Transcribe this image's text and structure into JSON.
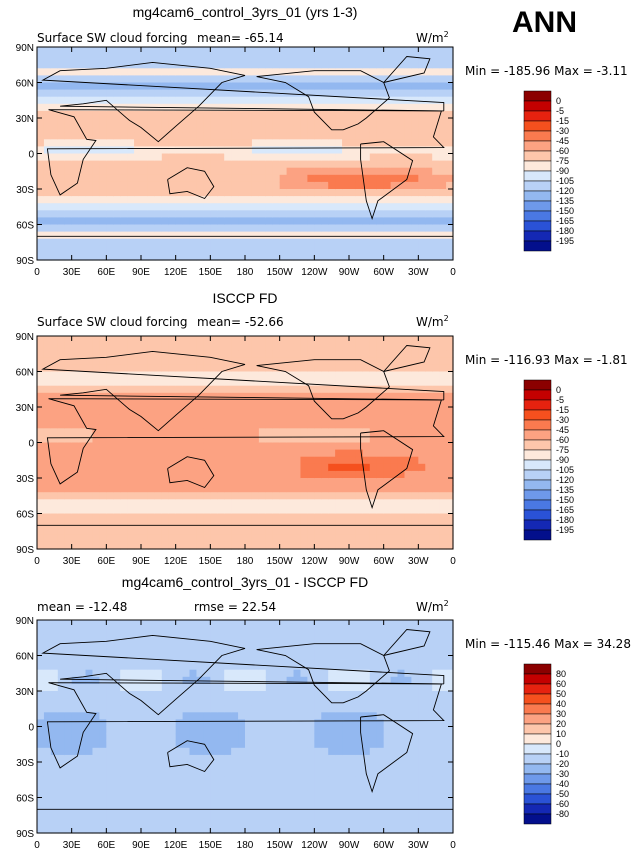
{
  "season": "ANN",
  "units": "W/m",
  "units_sup": "2",
  "chart_data": [
    {
      "type": "heatmap",
      "title": "mg4cam6_control_3yrs_01 (yrs 1-3)",
      "field_label": "Surface SW cloud forcing",
      "mean_label": "mean=",
      "mean": "-65.14",
      "min_label": "Min =",
      "min": "-185.96",
      "max_label": "Max =",
      "max": "-3.11",
      "x_ticks": [
        "0",
        "30E",
        "60E",
        "90E",
        "120E",
        "150E",
        "180",
        "150W",
        "120W",
        "90W",
        "60W",
        "30W",
        "0"
      ],
      "y_ticks": [
        "90N",
        "60N",
        "30N",
        "0",
        "30S",
        "60S",
        "90S"
      ],
      "xlim": [
        0,
        360
      ],
      "ylim": [
        -90,
        90
      ],
      "colorbar_labels": [
        "0",
        "-5",
        "-15",
        "-30",
        "-45",
        "-60",
        "-75",
        "-90",
        "-105",
        "-120",
        "-135",
        "-150",
        "-165",
        "-180",
        "-195"
      ],
      "colorbar_colors": [
        "#8b0000",
        "#c40000",
        "#e6220f",
        "#f5501e",
        "#fa7a4f",
        "#fca282",
        "#fdc6ab",
        "#fde9dc",
        "#d8e8fb",
        "#b8d1f6",
        "#93b8f0",
        "#6e99ea",
        "#4a78e3",
        "#2a52d6",
        "#1428b4",
        "#030f8c"
      ]
    },
    {
      "type": "heatmap",
      "title": "ISCCP FD",
      "field_label": "Surface SW cloud forcing",
      "mean_label": "mean=",
      "mean": "-52.66",
      "min_label": "Min =",
      "min": "-116.93",
      "max_label": "Max =",
      "max": "-1.81",
      "x_ticks": [
        "0",
        "30E",
        "60E",
        "90E",
        "120E",
        "150E",
        "180",
        "150W",
        "120W",
        "90W",
        "60W",
        "30W",
        "0"
      ],
      "y_ticks": [
        "90N",
        "60N",
        "30N",
        "0",
        "30S",
        "60S",
        "90S"
      ],
      "xlim": [
        0,
        360
      ],
      "ylim": [
        -90,
        90
      ],
      "colorbar_labels": [
        "0",
        "-5",
        "-15",
        "-30",
        "-45",
        "-60",
        "-75",
        "-90",
        "-105",
        "-120",
        "-135",
        "-150",
        "-165",
        "-180",
        "-195"
      ],
      "colorbar_colors": [
        "#8b0000",
        "#c40000",
        "#e6220f",
        "#f5501e",
        "#fa7a4f",
        "#fca282",
        "#fdc6ab",
        "#fde9dc",
        "#d8e8fb",
        "#b8d1f6",
        "#93b8f0",
        "#6e99ea",
        "#4a78e3",
        "#2a52d6",
        "#1428b4",
        "#030f8c"
      ]
    },
    {
      "type": "heatmap",
      "title": "mg4cam6_control_3yrs_01 - ISCCP FD",
      "mean_label": "mean =",
      "mean": "-12.48",
      "rmse_label": "rmse =",
      "rmse": "22.54",
      "min_label": "Min =",
      "min": "-115.46",
      "max_label": "Max =",
      "max": "34.28",
      "x_ticks": [
        "0",
        "30E",
        "60E",
        "90E",
        "120E",
        "150E",
        "180",
        "150W",
        "120W",
        "90W",
        "60W",
        "30W",
        "0"
      ],
      "y_ticks": [
        "90N",
        "60N",
        "30N",
        "0",
        "30S",
        "60S",
        "90S"
      ],
      "xlim": [
        0,
        360
      ],
      "ylim": [
        -90,
        90
      ],
      "colorbar_labels": [
        "80",
        "60",
        "50",
        "40",
        "30",
        "20",
        "10",
        "0",
        "-10",
        "-20",
        "-30",
        "-40",
        "-50",
        "-60",
        "-80"
      ],
      "colorbar_colors": [
        "#8b0000",
        "#c40000",
        "#e6220f",
        "#f5501e",
        "#fa7a4f",
        "#fca282",
        "#fdc6ab",
        "#fde9dc",
        "#d8e8fb",
        "#b8d1f6",
        "#93b8f0",
        "#6e99ea",
        "#4a78e3",
        "#2a52d6",
        "#1428b4",
        "#030f8c"
      ]
    }
  ]
}
